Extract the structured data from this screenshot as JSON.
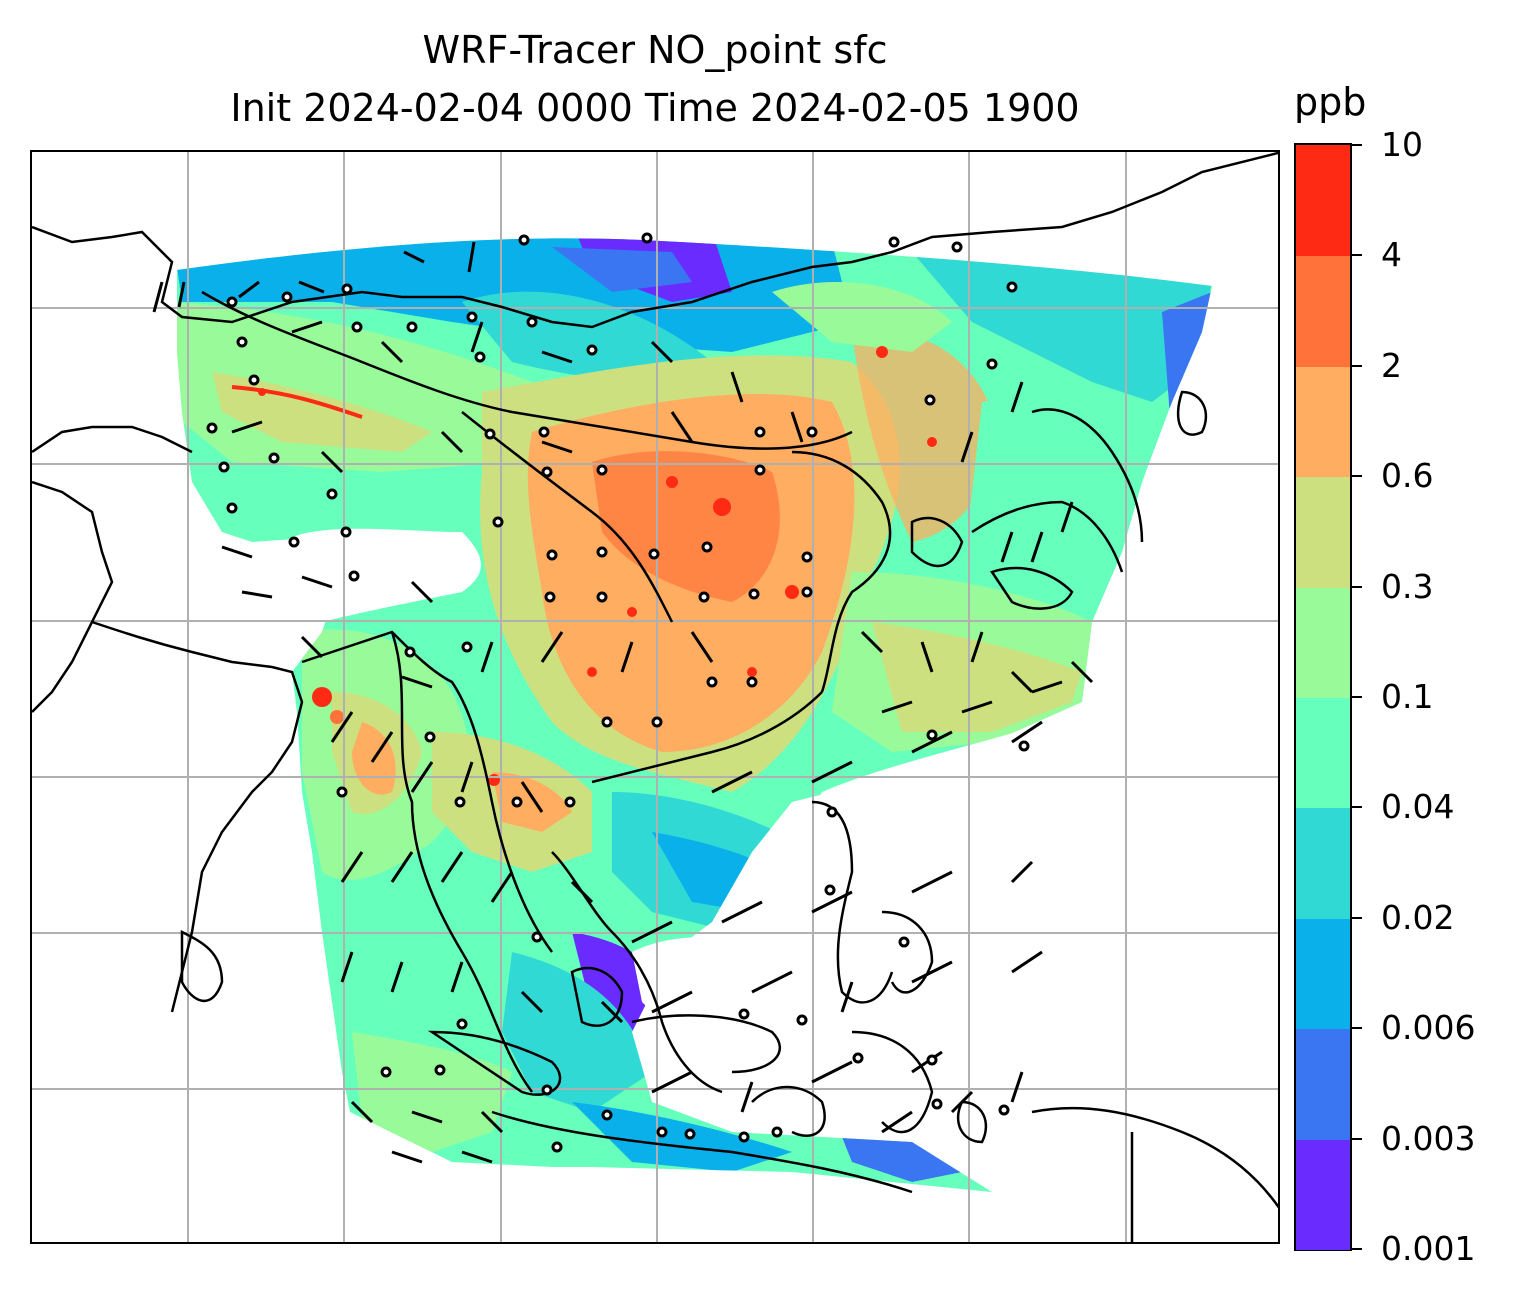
{
  "title_line1": "WRF-Tracer NO_point sfc",
  "title_line2": "Init 2024-02-04 0000 Time 2024-02-05 1900",
  "colorbar": {
    "unit": "ppb",
    "levels": [
      "0.001",
      "0.003",
      "0.006",
      "0.02",
      "0.04",
      "0.1",
      "0.3",
      "0.6",
      "2",
      "4",
      "10"
    ],
    "colors": [
      "#6a2bff",
      "#3a76f2",
      "#09b0ea",
      "#31d9d4",
      "#66ffbc",
      "#99fa9a",
      "#cde080",
      "#ffad60",
      "#ff733a",
      "#ff2a14"
    ]
  },
  "map": {
    "field_colors": {
      "background": "#ffffff",
      "coastline": "#000000",
      "gridline": "#b0b0b0",
      "wind_barb": "#000000"
    }
  }
}
